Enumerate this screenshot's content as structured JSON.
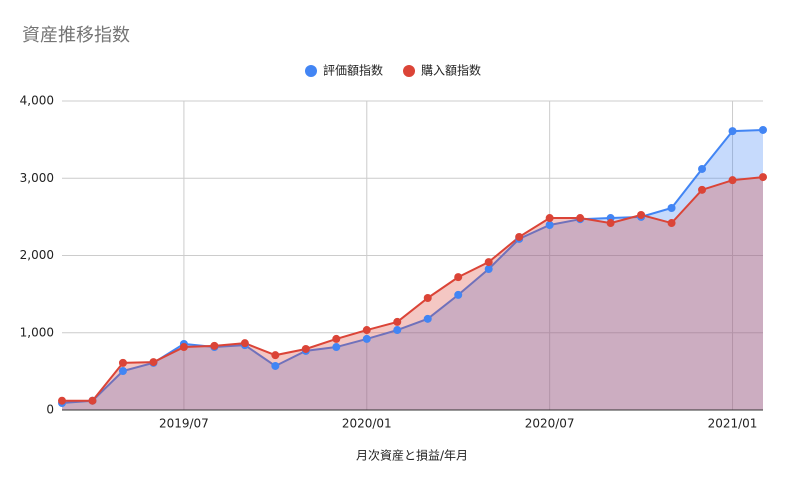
{
  "chart_data": {
    "type": "area",
    "title": "資産推移指数",
    "xlabel": "月次資産と損益/年月",
    "x": [
      "2019/03",
      "2019/04",
      "2019/05",
      "2019/06",
      "2019/07",
      "2019/08",
      "2019/09",
      "2019/10",
      "2019/11",
      "2019/12",
      "2020/01",
      "2020/02",
      "2020/03",
      "2020/04",
      "2020/05",
      "2020/06",
      "2020/07",
      "2020/08",
      "2020/09",
      "2020/10",
      "2020/11",
      "2020/12",
      "2021/01",
      "2021/02"
    ],
    "xticks": [
      "2019/07",
      "2020/01",
      "2020/07",
      "2021/01"
    ],
    "series": [
      {
        "name": "評価額指数",
        "color": "#4285f4",
        "values": [
          90,
          120,
          505,
          610,
          855,
          815,
          840,
          570,
          765,
          815,
          920,
          1035,
          1180,
          1490,
          1825,
          2215,
          2395,
          2470,
          2485,
          2500,
          2615,
          3120,
          3610,
          3625
        ]
      },
      {
        "name": "購入額指数",
        "color": "#db4437",
        "values": [
          120,
          120,
          610,
          620,
          815,
          830,
          865,
          710,
          790,
          920,
          1035,
          1140,
          1450,
          1720,
          1915,
          2240,
          2485,
          2485,
          2420,
          2525,
          2420,
          2850,
          2975,
          3015
        ]
      }
    ],
    "ylim": [
      0,
      4000
    ],
    "yticks": [
      0,
      {
        "value": 1000,
        "label": "1,000"
      },
      {
        "value": 2000,
        "label": "2,000"
      },
      {
        "value": 3000,
        "label": "3,000"
      },
      {
        "value": 4000,
        "label": "4,000"
      }
    ],
    "grid": true,
    "legend": "top"
  }
}
